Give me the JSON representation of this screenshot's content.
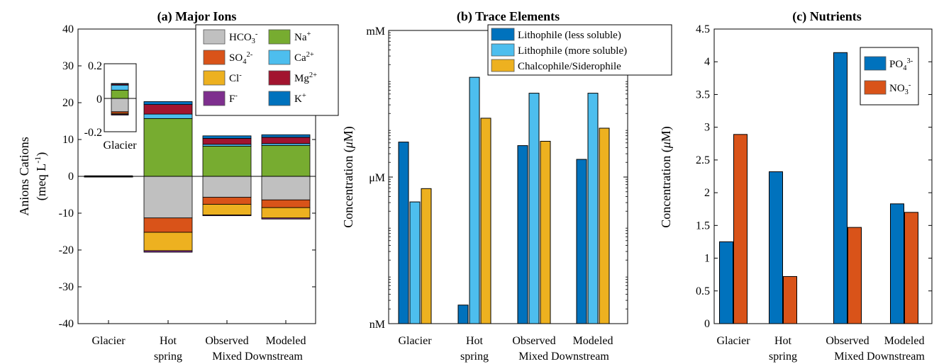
{
  "chart_data": [
    {
      "type": "bar",
      "stacked": true,
      "title": "(a) Major Ions",
      "ylabel": "Anions    Cations",
      "ylabel2": "(meq L",
      "ylabel2_sup": "-1",
      "ylabel2_end": ")",
      "ylim": [
        -40,
        40
      ],
      "yticks": [
        "40",
        "30",
        "20",
        "10",
        "0",
        "-10",
        "-20",
        "-30",
        "-40"
      ],
      "ytick_values": [
        40,
        30,
        20,
        10,
        0,
        -10,
        -20,
        -30,
        -40
      ],
      "categories": [
        "Glacier",
        "Hot spring",
        "Observed",
        "Modeled"
      ],
      "tick_lines": [
        [
          "Glacier"
        ],
        [
          "Hot",
          "spring"
        ],
        [
          "Observed"
        ],
        [
          "Modeled"
        ]
      ],
      "group_label": "Mixed Downstream",
      "anions": [
        {
          "name": "HCO3-",
          "label": "HCO",
          "sub": "3",
          "sup": "-",
          "color": "#c0c0c0",
          "values": [
            -0.08,
            -11.3,
            -5.7,
            -6.4
          ]
        },
        {
          "name": "SO4 2-",
          "label": "SO",
          "sub": "4",
          "sup": "2-",
          "color": "#d95319",
          "values": [
            -0.01,
            -3.9,
            -1.9,
            -2.1
          ]
        },
        {
          "name": "Cl-",
          "label": "Cl",
          "sub": "",
          "sup": "-",
          "color": "#edb120",
          "values": [
            -0.005,
            -5.0,
            -2.9,
            -2.8
          ]
        },
        {
          "name": "F-",
          "label": "F",
          "sub": "",
          "sup": "-",
          "color": "#7e2f8e",
          "values": [
            -0.005,
            -0.4,
            -0.2,
            -0.3
          ]
        }
      ],
      "cations": [
        {
          "name": "Na+",
          "label": "Na",
          "sub": "",
          "sup": "+",
          "color": "#77ac30",
          "values": [
            0.05,
            15.7,
            8.2,
            8.4
          ]
        },
        {
          "name": "Ca2+",
          "label": "Ca",
          "sub": "",
          "sup": "2+",
          "color": "#4dbeee",
          "values": [
            0.03,
            1.2,
            0.5,
            0.5
          ]
        },
        {
          "name": "Mg2+",
          "label": "Mg",
          "sub": "",
          "sup": "2+",
          "color": "#a2142f",
          "values": [
            0.008,
            2.6,
            1.6,
            1.7
          ]
        },
        {
          "name": "K+",
          "label": "K",
          "sub": "",
          "sup": "+",
          "color": "#0072bd",
          "values": [
            0.002,
            0.8,
            0.7,
            0.7
          ]
        }
      ],
      "inset": {
        "label": "Glacier",
        "yticks": [
          "0.2",
          "0",
          "-0.2"
        ],
        "ylim": [
          -0.2,
          0.2
        ]
      }
    },
    {
      "type": "bar",
      "scale": "log",
      "title": "(b) Trace Elements",
      "ylabel": "Concentration (",
      "ylabel_mu": "μ",
      "ylabel_end": "M)",
      "yticks": [
        "mM",
        "μM",
        "nM"
      ],
      "ylim_log10_uM": [
        -3,
        3
      ],
      "categories": [
        "Glacier",
        "Hot spring",
        "Observed",
        "Modeled"
      ],
      "tick_lines": [
        [
          "Glacier"
        ],
        [
          "Hot",
          "spring"
        ],
        [
          "Observed"
        ],
        [
          "Modeled"
        ]
      ],
      "group_label": "Mixed Downstream",
      "unit": "μM",
      "series": [
        {
          "name": "Lithophile (less soluble)",
          "color": "#0072bd",
          "values": [
            5.2,
            0.0024,
            4.4,
            2.3
          ]
        },
        {
          "name": "Lithophile (more soluble)",
          "color": "#4dbeee",
          "values": [
            0.31,
            110,
            52,
            52
          ]
        },
        {
          "name": "Chalcophile/Siderophile",
          "color": "#edb120",
          "values": [
            0.58,
            16,
            5.4,
            10
          ]
        }
      ]
    },
    {
      "type": "bar",
      "title": "(c) Nutrients",
      "ylabel": "Concentration (",
      "ylabel_mu": "μ",
      "ylabel_end": "M)",
      "ylim": [
        0,
        4.5
      ],
      "yticks": [
        "4.5",
        "4",
        "3.5",
        "3",
        "2.5",
        "2",
        "1.5",
        "1",
        "0.5",
        "0"
      ],
      "ytick_values": [
        4.5,
        4,
        3.5,
        3,
        2.5,
        2,
        1.5,
        1,
        0.5,
        0
      ],
      "categories": [
        "Glacier",
        "Hot spring",
        "Observed",
        "Modeled"
      ],
      "tick_lines": [
        [
          "Glacier"
        ],
        [
          "Hot",
          "spring"
        ],
        [
          "Observed"
        ],
        [
          "Modeled"
        ]
      ],
      "group_label": "Mixed Downstream",
      "series": [
        {
          "name": "PO4 3-",
          "label": "PO",
          "sub": "4",
          "sup": "3-",
          "color": "#0072bd",
          "values": [
            1.25,
            2.32,
            4.14,
            1.83
          ]
        },
        {
          "name": "NO3 -",
          "label": "NO",
          "sub": "3",
          "sup": "-",
          "color": "#d95319",
          "values": [
            2.89,
            0.72,
            1.47,
            1.7
          ]
        }
      ]
    }
  ]
}
